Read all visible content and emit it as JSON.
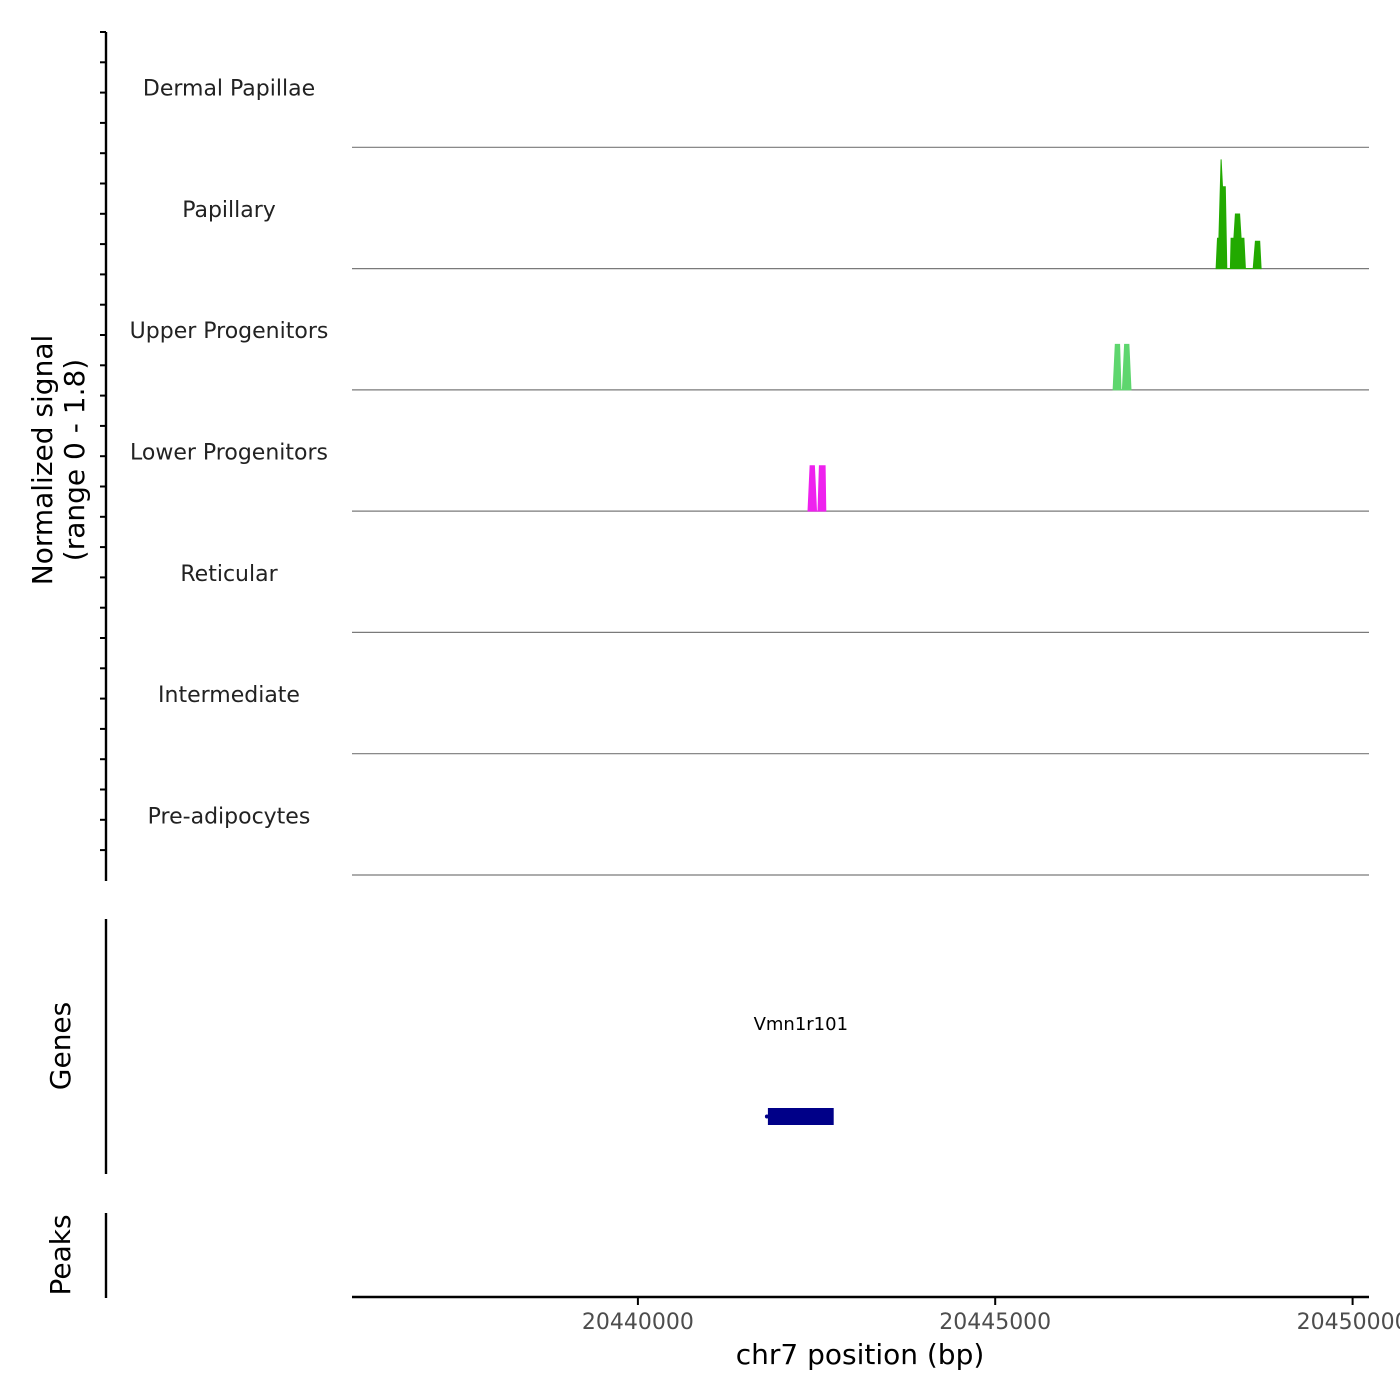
{
  "chart_data": {
    "type": "area",
    "title": "",
    "signal_panel": {
      "ylabel_line1": "Normalized signal",
      "ylabel_line2": "(range 0 - 1.8)",
      "ylim": [
        0,
        1.8
      ],
      "tracks": [
        {
          "name": "Dermal Papillae",
          "color": "#22AA00",
          "points": []
        },
        {
          "name": "Papillary",
          "color": "#22AA00",
          "points": [
            [
              20448090,
              0.0
            ],
            [
              20448110,
              0.5
            ],
            [
              20448130,
              0.5
            ],
            [
              20448160,
              1.8
            ],
            [
              20448180,
              1.35
            ],
            [
              20448220,
              1.35
            ],
            [
              20448240,
              0.0
            ],
            [
              20448290,
              0.0
            ],
            [
              20448300,
              0.5
            ],
            [
              20448340,
              0.5
            ],
            [
              20448360,
              0.9
            ],
            [
              20448420,
              0.9
            ],
            [
              20448440,
              0.5
            ],
            [
              20448480,
              0.5
            ],
            [
              20448500,
              0.0
            ],
            [
              20448610,
              0.0
            ],
            [
              20448640,
              0.45
            ],
            [
              20448700,
              0.45
            ],
            [
              20448720,
              0.0
            ]
          ]
        },
        {
          "name": "Upper Progenitors",
          "color": "#5ED66E",
          "points": [
            [
              20446650,
              0.0
            ],
            [
              20446680,
              0.75
            ],
            [
              20446740,
              0.75
            ],
            [
              20446760,
              0.0
            ],
            [
              20446780,
              0.0
            ],
            [
              20446810,
              0.75
            ],
            [
              20446870,
              0.75
            ],
            [
              20446900,
              0.0
            ]
          ]
        },
        {
          "name": "Lower Progenitors",
          "color": "#EE22EE",
          "points": [
            [
              20442380,
              0.0
            ],
            [
              20442410,
              0.75
            ],
            [
              20442470,
              0.75
            ],
            [
              20442500,
              0.0
            ],
            [
              20442520,
              0.0
            ],
            [
              20442540,
              0.75
            ],
            [
              20442620,
              0.75
            ],
            [
              20442630,
              0.0
            ]
          ]
        },
        {
          "name": "Reticular",
          "color": "#22AA00",
          "points": []
        },
        {
          "name": "Intermediate",
          "color": "#22AA00",
          "points": []
        },
        {
          "name": "Pre-adipocytes",
          "color": "#22AA00",
          "points": []
        }
      ]
    },
    "genes_panel": {
      "label": "Genes",
      "genes": [
        {
          "name": "Vmn1r101",
          "start": 20441820,
          "end": 20442740,
          "color": "#000088"
        }
      ]
    },
    "peaks_panel": {
      "label": "Peaks",
      "peaks": []
    },
    "x_axis": {
      "label": "chr7 position (bp)",
      "xlim": [
        20436000,
        20450230
      ],
      "ticks": [
        20440000,
        20445000,
        20450000
      ],
      "tick_labels": [
        "20440000",
        "20445000",
        "20450000"
      ]
    }
  }
}
